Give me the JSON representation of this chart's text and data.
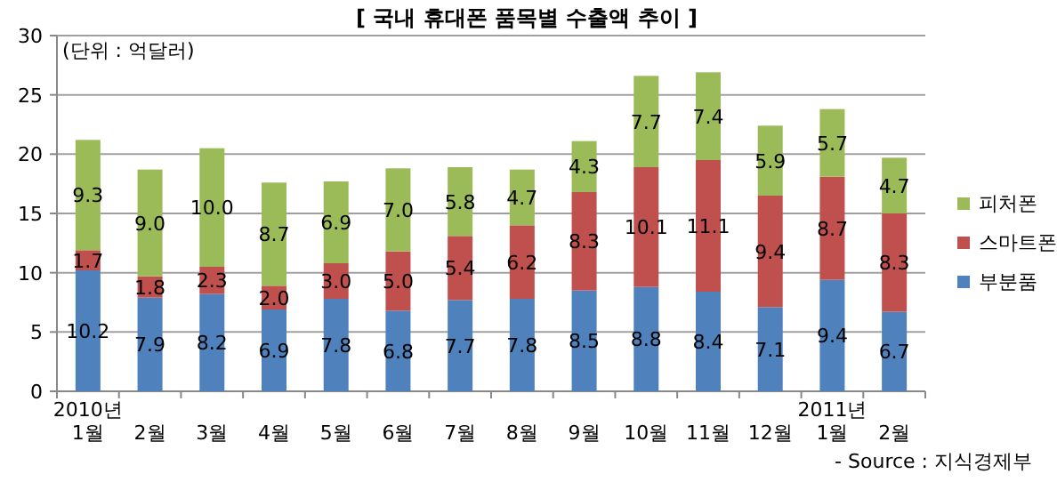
{
  "chart_data": {
    "type": "bar",
    "title": "[ 국내 휴대폰 품목별 수출액 추이 ]",
    "categories": [
      "2010년\n1월",
      "2월",
      "3월",
      "4월",
      "5월",
      "6월",
      "7월",
      "8월",
      "9월",
      "10월",
      "11월",
      "12월",
      "2011년\n1월",
      "2월"
    ],
    "series": [
      {
        "name": "부분품",
        "color": "#4f81bd",
        "values": [
          10.2,
          7.9,
          8.2,
          6.9,
          7.8,
          6.8,
          7.7,
          7.8,
          8.5,
          8.8,
          8.4,
          7.1,
          9.4,
          6.7
        ],
        "value_labels": [
          "10.2",
          "7.9",
          "8.2",
          "6.9",
          "7.8",
          "6.8",
          "7.7",
          "7.8",
          "8.5",
          "8.8",
          "8.4",
          "7.1",
          "9.4",
          "6.7"
        ]
      },
      {
        "name": "스마트폰",
        "color": "#c0504d",
        "values": [
          1.7,
          1.8,
          2.3,
          2.0,
          3.0,
          5.0,
          5.4,
          6.2,
          8.3,
          10.1,
          11.1,
          9.4,
          8.7,
          8.3
        ],
        "value_labels": [
          "1.7",
          "1.8",
          "2.3",
          "2.0",
          "3.0",
          "5.0",
          "5.4",
          "6.2",
          "8.3",
          "10.1",
          "11.1",
          "9.4",
          "8.7",
          "8.3"
        ]
      },
      {
        "name": "피처폰",
        "color": "#9bbb59",
        "values": [
          9.3,
          9.0,
          10.0,
          8.7,
          6.9,
          7.0,
          5.8,
          4.7,
          4.3,
          7.7,
          7.4,
          5.9,
          5.7,
          4.7
        ],
        "value_labels": [
          "9.3",
          "9.0",
          "10.0",
          "8.7",
          "6.9",
          "7.0",
          "5.8",
          "4.7",
          "4.3",
          "7.7",
          "7.4",
          "5.9",
          "5.7",
          "4.7"
        ]
      }
    ],
    "stacked": true,
    "ylim": [
      0,
      30
    ],
    "yticks": [
      0,
      5,
      10,
      15,
      20,
      25,
      30
    ],
    "grid": "y",
    "legend": "right",
    "annotations": [
      "(단위 : 억달러)",
      "- Source : 지식경제부"
    ]
  }
}
